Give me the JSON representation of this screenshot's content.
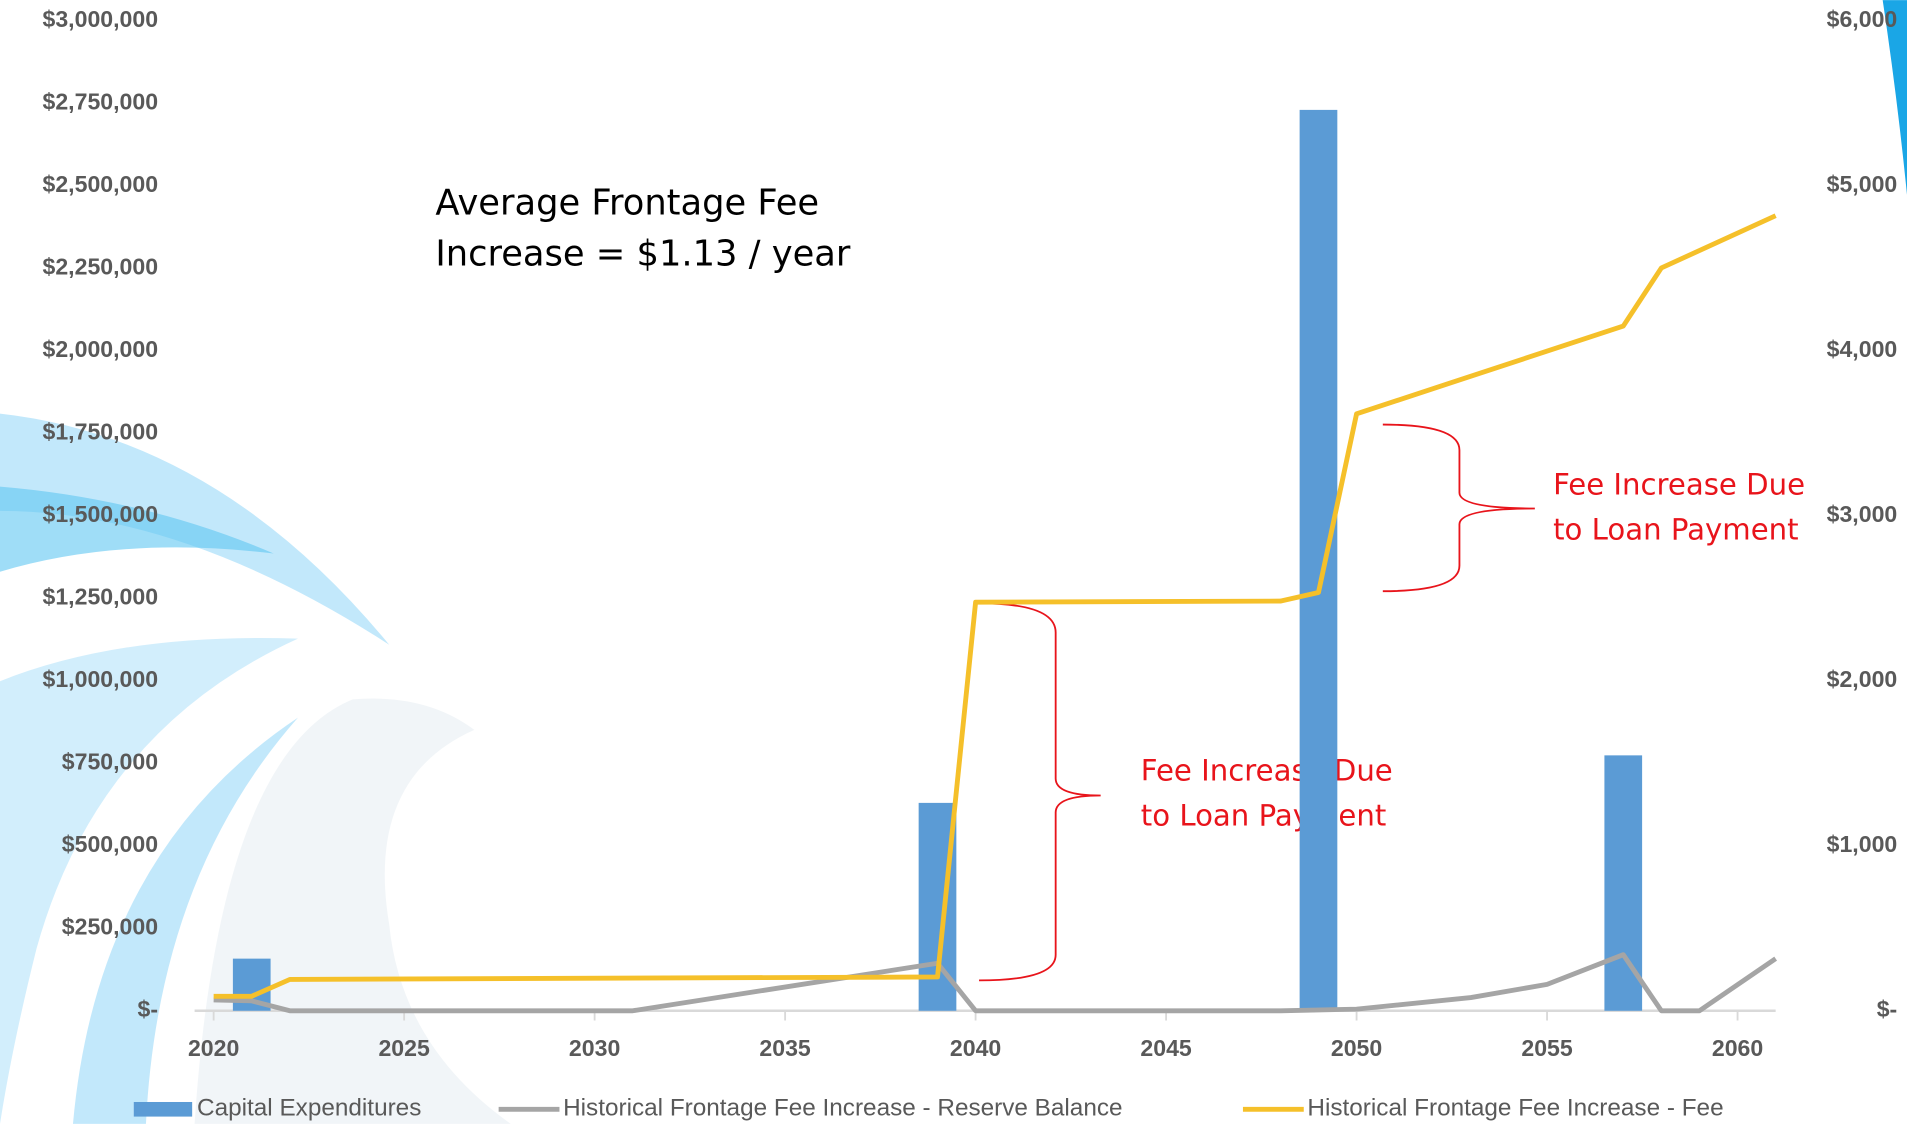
{
  "chart_data": {
    "type": "bar",
    "annotations": [
      "Average Frontage Fee",
      "Increase = $1.13 / year",
      "Fee Increase Due",
      "to Loan Payment",
      "Fee Increase Due",
      "to Loan Payment"
    ],
    "xlim": [
      2019.5,
      2061
    ],
    "xticks": [
      2020,
      2025,
      2030,
      2035,
      2040,
      2045,
      2050,
      2055,
      2060
    ],
    "ylim": [
      0,
      3000000
    ],
    "yticks": [
      {
        "value": 0,
        "label": "$-"
      },
      {
        "value": 250000,
        "label": "$250,000"
      },
      {
        "value": 500000,
        "label": "$500,000"
      },
      {
        "value": 750000,
        "label": "$750,000"
      },
      {
        "value": 1000000,
        "label": "$1,000,000"
      },
      {
        "value": 1250000,
        "label": "$1,250,000"
      },
      {
        "value": 1500000,
        "label": "$1,500,000"
      },
      {
        "value": 1750000,
        "label": "$1,750,000"
      },
      {
        "value": 2000000,
        "label": "$2,000,000"
      },
      {
        "value": 2250000,
        "label": "$2,250,000"
      },
      {
        "value": 2500000,
        "label": "$2,500,000"
      },
      {
        "value": 2750000,
        "label": "$2,750,000"
      },
      {
        "value": 3000000,
        "label": "$3,000,000"
      }
    ],
    "y2lim": [
      0,
      6000
    ],
    "y2ticks": [
      {
        "value": 0,
        "label": "$-"
      },
      {
        "value": 1000,
        "label": "$1,000"
      },
      {
        "value": 2000,
        "label": "$2,000"
      },
      {
        "value": 3000,
        "label": "$3,000"
      },
      {
        "value": 4000,
        "label": "$4,000"
      },
      {
        "value": 5000,
        "label": "$5,000"
      },
      {
        "value": 6000,
        "label": "$6,000"
      }
    ],
    "series": [
      {
        "name": "Capital Expenditures",
        "type": "bar",
        "color": "#5b9bd5",
        "x": [
          2021,
          2039,
          2049,
          2057
        ],
        "values": [
          158000,
          630000,
          2730000,
          774000
        ]
      },
      {
        "name": "Historical Frontage Fee Increase - Reserve Balance",
        "type": "line",
        "color": "#a5a5a5",
        "x": [
          2020,
          2021,
          2022,
          2031,
          2039,
          2040,
          2048,
          2050,
          2053,
          2055,
          2057,
          2058,
          2059,
          2061
        ],
        "values": [
          33000,
          30000,
          0,
          0,
          144000,
          0,
          0,
          5000,
          40000,
          80000,
          170000,
          0,
          0,
          158000
        ]
      },
      {
        "name": "Historical Frontage Fee Increase - Fee",
        "type": "line",
        "color": "#f5c02a",
        "axis": "y2",
        "x": [
          2020,
          2021,
          2022,
          2039,
          2040,
          2048,
          2049,
          2050,
          2057,
          2058,
          2061
        ],
        "values": [
          88,
          88,
          190,
          205,
          2476,
          2483,
          2535,
          3618,
          4150,
          4502,
          4819
        ]
      }
    ]
  }
}
